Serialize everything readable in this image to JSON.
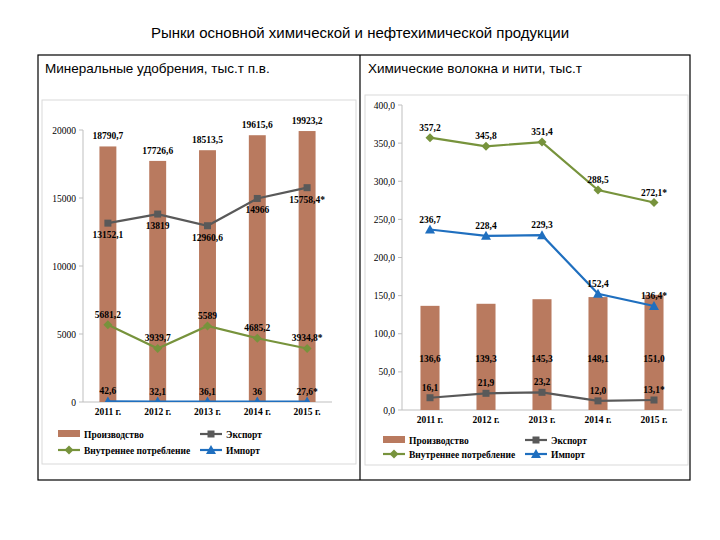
{
  "header": {
    "title": "Рынки основной химической и нефтехимической продукции"
  },
  "chart_data": [
    {
      "type": "bar",
      "title": "Минеральные удобрения, тыс.т п.в.",
      "categories": [
        "2011 г.",
        "2012 г.",
        "2013 г.",
        "2014 г.",
        "2015 г."
      ],
      "ylim": [
        0,
        20000
      ],
      "yticks": [
        0,
        5000,
        10000,
        15000,
        20000
      ],
      "grid": false,
      "legend": "bottom",
      "data_labels": true,
      "series": [
        {
          "name": "Производство",
          "type": "bar",
          "color": "#b97a5f",
          "values": [
            18790.7,
            17726.6,
            18513.5,
            19615.6,
            19923.2
          ],
          "value_labels": [
            "18790,7",
            "17726,6",
            "18513,5",
            "19615,6",
            "19923,2"
          ]
        },
        {
          "name": "Экспорт",
          "type": "line",
          "color": "#595959",
          "marker": "square",
          "line_style": "solid",
          "values": [
            13152.1,
            13819,
            12960.6,
            14966,
            15758.4
          ],
          "value_labels": [
            "13152,1",
            "13819",
            "12960,6",
            "14966",
            "15758,4*"
          ]
        },
        {
          "name": "Внутреннее потребление",
          "type": "line",
          "color": "#77933c",
          "marker": "diamond",
          "line_style": "solid",
          "values": [
            5681.2,
            3939.7,
            5589,
            4685.2,
            3934.8
          ],
          "value_labels": [
            "5681,2",
            "3939,7",
            "5589",
            "4685,2",
            "3934,8*"
          ]
        },
        {
          "name": "Импорт",
          "type": "line",
          "color": "#1f6fbf",
          "marker": "triangle",
          "line_style": "solid",
          "values": [
            42.6,
            32.1,
            36.1,
            36,
            27.6
          ],
          "value_labels": [
            "42,6",
            "32,1",
            "36,1",
            "36",
            "27,6*"
          ]
        }
      ]
    },
    {
      "type": "bar",
      "title": "Химические волокна и нити, тыс.т",
      "categories": [
        "2011 г.",
        "2012 г.",
        "2013 г.",
        "2014 г.",
        "2015 г."
      ],
      "ylim": [
        0,
        400
      ],
      "yticks": [
        {
          "value": 0,
          "label": "0,0"
        },
        {
          "value": 50,
          "label": "50,0"
        },
        {
          "value": 100,
          "label": "100,0"
        },
        {
          "value": 150,
          "label": "150,0"
        },
        {
          "value": 200,
          "label": "200,0"
        },
        {
          "value": 250,
          "label": "250,0"
        },
        {
          "value": 300,
          "label": "300,0"
        },
        {
          "value": 350,
          "label": "350,0"
        },
        {
          "value": 400,
          "label": "400,0"
        }
      ],
      "grid": false,
      "legend": "bottom",
      "data_labels": true,
      "series": [
        {
          "name": "Производство",
          "type": "bar",
          "color": "#b97a5f",
          "values": [
            136.6,
            139.3,
            145.3,
            148.1,
            151.0
          ],
          "value_labels": [
            "136,6",
            "139,3",
            "145,3",
            "148,1",
            "151,0"
          ]
        },
        {
          "name": "Экспорт",
          "type": "line",
          "color": "#595959",
          "marker": "square",
          "line_style": "solid",
          "values": [
            16.1,
            21.9,
            23.2,
            12.0,
            13.1
          ],
          "value_labels": [
            "16,1",
            "21,9",
            "23,2",
            "12,0",
            "13,1*"
          ]
        },
        {
          "name": "Внутреннее потребление",
          "type": "line",
          "color": "#77933c",
          "marker": "diamond",
          "line_style": "solid",
          "values": [
            357.2,
            345.8,
            351.4,
            288.5,
            272.1
          ],
          "value_labels": [
            "357,2",
            "345,8",
            "351,4",
            "288,5",
            "272,1*"
          ]
        },
        {
          "name": "Импорт",
          "type": "line",
          "color": "#1f6fbf",
          "marker": "triangle",
          "line_style": "solid",
          "values": [
            236.7,
            228.4,
            229.3,
            152.4,
            136.4
          ],
          "value_labels": [
            "236,7",
            "228,4",
            "229,3",
            "152,4",
            "136,4*"
          ]
        }
      ]
    }
  ]
}
